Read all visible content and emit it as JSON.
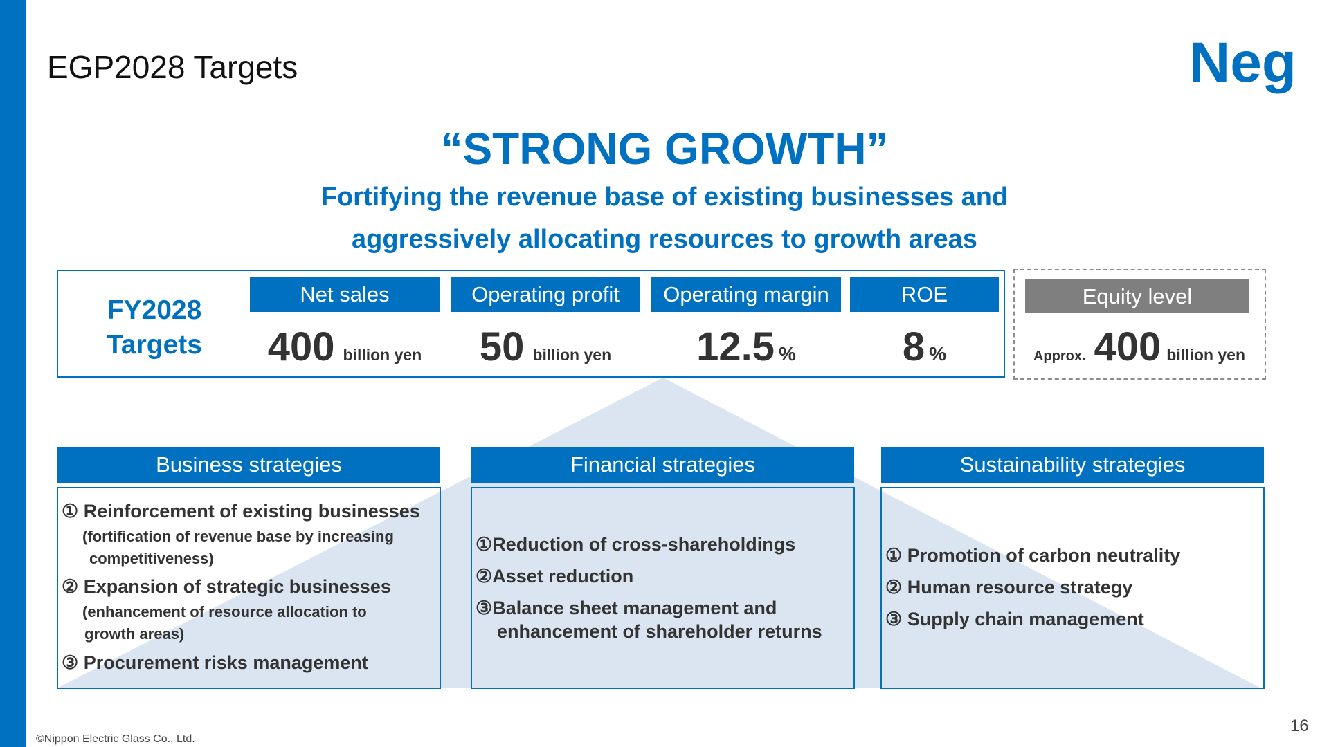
{
  "slide": {
    "title": "EGP2028 Targets",
    "logo_text": "Neg",
    "headline": "“STRONG GROWTH”",
    "subheadline_line1": "Fortifying the revenue base of existing businesses and",
    "subheadline_line2": "aggressively allocating resources to growth areas"
  },
  "targets": {
    "label_line1": "FY2028",
    "label_line2": "Targets",
    "kpis": [
      {
        "label": "Net sales",
        "value": "400",
        "unit": "billion yen"
      },
      {
        "label": "Operating profit",
        "value": "50",
        "unit": "billion yen"
      },
      {
        "label": "Operating margin",
        "value": "12.5",
        "unit": "%"
      },
      {
        "label": "ROE",
        "value": "8",
        "unit": "%"
      }
    ],
    "equity": {
      "label": "Equity level",
      "prefix": "Approx.",
      "value": "400",
      "unit": "billion yen"
    }
  },
  "strategies": {
    "business": {
      "title": "Business strategies",
      "items": [
        {
          "text": "① Reinforcement of existing businesses",
          "sub1": "(fortification of revenue base by increasing",
          "sub2": "competitiveness)"
        },
        {
          "text": "② Expansion of strategic businesses",
          "sub1": "(enhancement of resource allocation to",
          "sub2": "growth areas)"
        },
        {
          "text": "③ Procurement risks management"
        }
      ]
    },
    "financial": {
      "title": "Financial strategies",
      "items": [
        {
          "text": "①Reduction of cross-shareholdings"
        },
        {
          "text": "②Asset reduction"
        },
        {
          "text": "③Balance sheet management and",
          "line2": "enhancement of shareholder returns"
        }
      ]
    },
    "sustainability": {
      "title": "Sustainability strategies",
      "items": [
        {
          "text": "① Promotion of carbon neutrality"
        },
        {
          "text": "② Human resource strategy"
        },
        {
          "text": "③ Supply chain management"
        }
      ]
    }
  },
  "footer": {
    "copyright": "©Nippon Electric Glass Co., Ltd.",
    "page_number": "16"
  },
  "colors": {
    "brand_blue": "#0070c0",
    "equity_gray": "#7f7f7f",
    "triangle_fill": "#dbe5f1"
  }
}
